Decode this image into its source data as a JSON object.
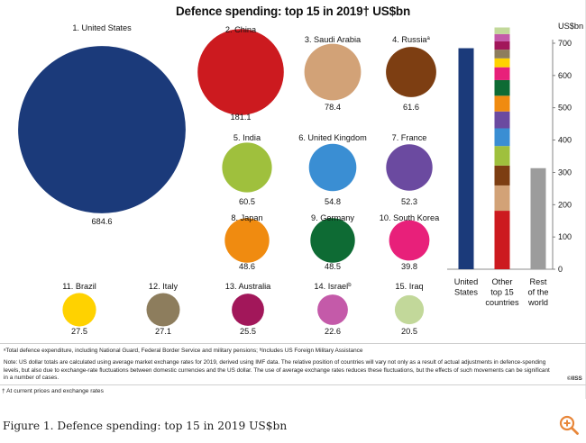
{
  "title": "Defence spending: top 15 in 2019† US$bn",
  "chart_data": [
    {
      "type": "bubble",
      "title": "Defence spending: top 15 in 2019† US$bn",
      "unit": "US$bn",
      "countries": [
        {
          "rank": 1,
          "label": "1. United States",
          "value": 684.6,
          "value_label": "684.6",
          "color": "#1b3a7a"
        },
        {
          "rank": 2,
          "label": "2. China",
          "value": 181.1,
          "value_label": "181.1",
          "color": "#cc1a1f"
        },
        {
          "rank": 3,
          "label": "3. Saudi Arabia",
          "value": 78.4,
          "value_label": "78.4",
          "color": "#d2a277"
        },
        {
          "rank": 4,
          "label": "4. Russia",
          "label_sup": "a",
          "value": 61.6,
          "value_label": "61.6",
          "color": "#7d3e12"
        },
        {
          "rank": 5,
          "label": "5. India",
          "value": 60.5,
          "value_label": "60.5",
          "color": "#9fc03d"
        },
        {
          "rank": 6,
          "label": "6. United Kingdom",
          "value": 54.8,
          "value_label": "54.8",
          "color": "#3a8ed3"
        },
        {
          "rank": 7,
          "label": "7. France",
          "value": 52.3,
          "value_label": "52.3",
          "color": "#6b4aa0"
        },
        {
          "rank": 8,
          "label": "8. Japan",
          "value": 48.6,
          "value_label": "48.6",
          "color": "#f08b10"
        },
        {
          "rank": 9,
          "label": "9. Germany",
          "value": 48.5,
          "value_label": "48.5",
          "color": "#0e6b34"
        },
        {
          "rank": 10,
          "label": "10. South Korea",
          "value": 39.8,
          "value_label": "39.8",
          "color": "#e8207a"
        },
        {
          "rank": 11,
          "label": "11. Brazil",
          "value": 27.5,
          "value_label": "27.5",
          "color": "#ffd200"
        },
        {
          "rank": 12,
          "label": "12. Italy",
          "value": 27.1,
          "value_label": "27.1",
          "color": "#8d7d5d"
        },
        {
          "rank": 13,
          "label": "13. Australia",
          "value": 25.5,
          "value_label": "25.5",
          "color": "#a2175a"
        },
        {
          "rank": 14,
          "label": "14. Israel",
          "label_sup": "b",
          "value": 22.6,
          "value_label": "22.6",
          "color": "#c45aa9"
        },
        {
          "rank": 15,
          "label": "15. Iraq",
          "value": 20.5,
          "value_label": "20.5",
          "color": "#c2d89a"
        }
      ]
    },
    {
      "type": "stacked_bar",
      "unit_label": "US$bn",
      "ylim": [
        0,
        700
      ],
      "yticks": [
        "0",
        "100",
        "200",
        "300",
        "400",
        "500",
        "600",
        "700"
      ],
      "categories": [
        {
          "label_lines": [
            "United",
            "States"
          ],
          "segments": [
            {
              "value": 684.6,
              "color": "#1b3a7a"
            }
          ]
        },
        {
          "label_lines": [
            "Other",
            "top 15",
            "countries"
          ],
          "segments": [
            {
              "value": 181.1,
              "color": "#cc1a1f"
            },
            {
              "value": 78.4,
              "color": "#d2a277"
            },
            {
              "value": 61.6,
              "color": "#7d3e12"
            },
            {
              "value": 60.5,
              "color": "#9fc03d"
            },
            {
              "value": 54.8,
              "color": "#3a8ed3"
            },
            {
              "value": 52.3,
              "color": "#6b4aa0"
            },
            {
              "value": 48.6,
              "color": "#f08b10"
            },
            {
              "value": 48.5,
              "color": "#0e6b34"
            },
            {
              "value": 39.8,
              "color": "#e8207a"
            },
            {
              "value": 27.5,
              "color": "#ffd200"
            },
            {
              "value": 27.1,
              "color": "#8d7d5d"
            },
            {
              "value": 25.5,
              "color": "#a2175a"
            },
            {
              "value": 22.6,
              "color": "#c45aa9"
            },
            {
              "value": 20.5,
              "color": "#c2d89a"
            }
          ]
        },
        {
          "label_lines": [
            "Rest",
            "of the",
            "world"
          ],
          "segments": [
            {
              "value": 313,
              "color": "#9c9c9c"
            }
          ]
        }
      ]
    }
  ],
  "notes": {
    "line1": "ᵃTotal defence expenditure, including National Guard, Federal Border Service and military pensions; ᵇIncludes US Foreign Military Assistance",
    "line2": "Note: US dollar totals are calculated using average market exchange rates for 2019, derived using IMF data. The relative position of countries will vary not only as a result of actual adjustments in defence-spending",
    "line3": "levels, but also due to exchange-rate fluctuations between domestic currencies and the US dollar. The use of average exchange rates reduces these fluctuations, but the effects of such movements can be significant",
    "line4": "in a number of cases.",
    "logo": "©IISS",
    "dagger": "† At current prices and exchange rates"
  },
  "caption": "Figure 1. Defence spending: top 15 in 2019 US$bn",
  "icons": {
    "zoom": "zoom-in-icon"
  },
  "colors": {
    "zoom_accent": "#e8873a"
  }
}
